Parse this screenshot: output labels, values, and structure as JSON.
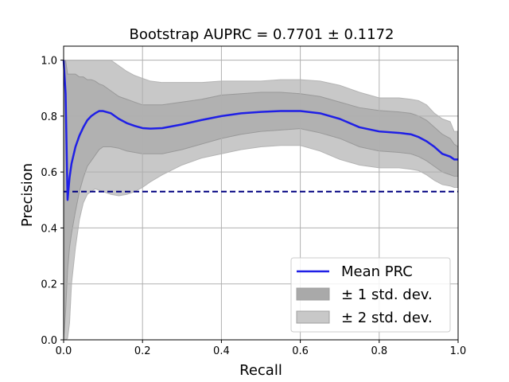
{
  "chart_data": {
    "type": "area",
    "title": "Bootstrap AUPRC = 0.7701 ± 0.1172",
    "xlabel": "Recall",
    "ylabel": "Precision",
    "xlim": [
      0,
      1
    ],
    "ylim": [
      0,
      1.05
    ],
    "xticks": [
      "0.0",
      "0.2",
      "0.4",
      "0.6",
      "0.8",
      "1.0"
    ],
    "yticks": [
      "0.0",
      "0.2",
      "0.4",
      "0.6",
      "0.8",
      "1.0"
    ],
    "grid": true,
    "legend_position": "lower-right",
    "baseline": {
      "y": 0.53,
      "color": "#000080",
      "style": "dashed"
    },
    "x": [
      0.0,
      0.005,
      0.01,
      0.015,
      0.02,
      0.03,
      0.04,
      0.05,
      0.06,
      0.07,
      0.08,
      0.09,
      0.1,
      0.12,
      0.14,
      0.16,
      0.18,
      0.2,
      0.22,
      0.25,
      0.3,
      0.35,
      0.4,
      0.45,
      0.5,
      0.55,
      0.6,
      0.65,
      0.7,
      0.75,
      0.8,
      0.85,
      0.88,
      0.9,
      0.92,
      0.94,
      0.96,
      0.98,
      0.99,
      1.0
    ],
    "series": [
      {
        "name": "Mean PRC",
        "color": "#1f1fe6",
        "values": [
          1.0,
          0.88,
          0.5,
          0.58,
          0.63,
          0.69,
          0.73,
          0.76,
          0.785,
          0.8,
          0.81,
          0.818,
          0.818,
          0.81,
          0.79,
          0.775,
          0.765,
          0.757,
          0.755,
          0.757,
          0.77,
          0.786,
          0.8,
          0.81,
          0.815,
          0.818,
          0.818,
          0.81,
          0.79,
          0.76,
          0.745,
          0.74,
          0.735,
          0.725,
          0.71,
          0.69,
          0.665,
          0.655,
          0.645,
          0.645
        ]
      },
      {
        "name": "± 1 std. dev.",
        "color": "#a9a9a9",
        "upper": [
          1.0,
          1.0,
          0.95,
          0.95,
          0.95,
          0.95,
          0.94,
          0.94,
          0.93,
          0.93,
          0.925,
          0.915,
          0.91,
          0.89,
          0.87,
          0.86,
          0.85,
          0.84,
          0.84,
          0.84,
          0.85,
          0.86,
          0.875,
          0.88,
          0.885,
          0.885,
          0.88,
          0.87,
          0.85,
          0.83,
          0.82,
          0.815,
          0.81,
          0.8,
          0.785,
          0.76,
          0.735,
          0.72,
          0.7,
          0.69
        ],
        "lower": [
          0.0,
          0.1,
          0.25,
          0.33,
          0.38,
          0.46,
          0.53,
          0.58,
          0.62,
          0.64,
          0.66,
          0.68,
          0.69,
          0.69,
          0.685,
          0.675,
          0.67,
          0.665,
          0.665,
          0.665,
          0.68,
          0.7,
          0.72,
          0.735,
          0.745,
          0.75,
          0.755,
          0.74,
          0.72,
          0.69,
          0.675,
          0.67,
          0.665,
          0.655,
          0.64,
          0.62,
          0.6,
          0.59,
          0.585,
          0.585
        ]
      },
      {
        "name": "± 2 std. dev.",
        "color": "#c8c8c8",
        "upper": [
          1.0,
          1.0,
          1.0,
          1.0,
          1.0,
          1.0,
          1.0,
          1.0,
          1.0,
          1.0,
          1.0,
          1.0,
          1.0,
          1.0,
          0.98,
          0.96,
          0.945,
          0.935,
          0.925,
          0.92,
          0.92,
          0.92,
          0.925,
          0.925,
          0.925,
          0.93,
          0.93,
          0.925,
          0.91,
          0.885,
          0.865,
          0.865,
          0.86,
          0.855,
          0.84,
          0.81,
          0.79,
          0.78,
          0.745,
          0.745
        ],
        "lower": [
          0.0,
          0.0,
          0.005,
          0.06,
          0.2,
          0.33,
          0.43,
          0.49,
          0.52,
          0.53,
          0.54,
          0.535,
          0.53,
          0.52,
          0.515,
          0.52,
          0.53,
          0.545,
          0.565,
          0.59,
          0.625,
          0.65,
          0.665,
          0.68,
          0.69,
          0.695,
          0.695,
          0.675,
          0.645,
          0.625,
          0.615,
          0.615,
          0.61,
          0.605,
          0.59,
          0.57,
          0.555,
          0.55,
          0.545,
          0.545
        ]
      }
    ]
  }
}
